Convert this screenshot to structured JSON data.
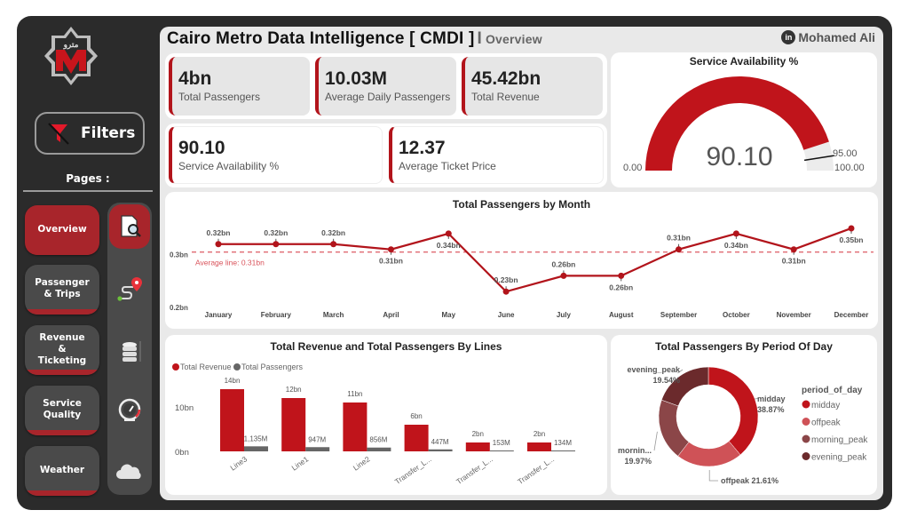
{
  "sidebar": {
    "filters_label": "Filters",
    "pages_label": "Pages :",
    "pages": [
      {
        "label": "Overview",
        "active": true,
        "icon": "report-search-icon"
      },
      {
        "label": "Passenger & Trips",
        "active": false,
        "icon": "route-pin-icon"
      },
      {
        "label": "Revenue & Ticketing",
        "active": false,
        "icon": "database-stack-icon"
      },
      {
        "label": "Service Quality",
        "active": false,
        "icon": "speedometer-icon"
      },
      {
        "label": "Weather",
        "active": false,
        "icon": "cloud-icon"
      }
    ]
  },
  "header": {
    "title": "Cairo Metro Data Intelligence [ CMDI ]",
    "separator": "I",
    "subtitle": "Overview",
    "author": "Mohamed Ali",
    "author_icon": "linkedin-icon"
  },
  "kpis": [
    {
      "value": "4bn",
      "label": "Total Passengers"
    },
    {
      "value": "10.03M",
      "label": "Average Daily Passengers"
    },
    {
      "value": "45.42bn",
      "label": "Total Revenue"
    },
    {
      "value": "90.10",
      "label": "Service Availability %"
    },
    {
      "value": "12.37",
      "label": "Average Ticket Price"
    }
  ],
  "colors": {
    "accent": "#b2141b",
    "sidebar": "#2b2b2b",
    "nav_active": "#a8252b",
    "grey_series": "#666666"
  },
  "chart_data": [
    {
      "type": "gauge",
      "title": "Service Availability %",
      "value": 90.1,
      "value_label": "90.10",
      "min": 0,
      "min_label": "0.00",
      "max": 100,
      "max_label": "100.00",
      "target": 95,
      "target_label": "95.00"
    },
    {
      "type": "line",
      "title": "Total Passengers by Month",
      "categories": [
        "January",
        "February",
        "March",
        "April",
        "May",
        "June",
        "July",
        "August",
        "September",
        "October",
        "November",
        "December"
      ],
      "values": [
        0.32,
        0.32,
        0.32,
        0.31,
        0.34,
        0.23,
        0.26,
        0.26,
        0.31,
        0.34,
        0.31,
        0.35
      ],
      "data_labels": [
        "0.32bn",
        "0.32bn",
        "0.32bn",
        "0.31bn",
        "0.34bn",
        "0.23bn",
        "0.26bn",
        "0.26bn",
        "0.31bn",
        "0.34bn",
        "0.31bn",
        "0.35bn"
      ],
      "yticks": [
        0.2,
        0.3
      ],
      "ytick_labels": [
        "0.2bn",
        "0.3bn"
      ],
      "ylim": [
        0.2,
        0.355
      ],
      "average": 0.305,
      "average_label": "Average line: 0.31bn"
    },
    {
      "type": "bar",
      "title": "Total Revenue and Total Passengers By Lines",
      "categories": [
        "Line3",
        "Line1",
        "Line2",
        "Transfer_L...",
        "Transfer_L...",
        "Transfer_L..."
      ],
      "series": [
        {
          "name": "Total Revenue",
          "values": [
            14,
            12,
            11,
            6,
            2,
            2
          ],
          "labels": [
            "14bn",
            "12bn",
            "11bn",
            "6bn",
            "2bn",
            "2bn"
          ],
          "unit": "bn"
        },
        {
          "name": "Total Passengers",
          "values": [
            1.135,
            0.947,
            0.856,
            0.447,
            0.153,
            0.134
          ],
          "labels": [
            "1,135M",
            "947M",
            "856M",
            "447M",
            "153M",
            "134M"
          ],
          "unit": "bn"
        }
      ],
      "yticks": [
        0,
        10
      ],
      "ytick_labels": [
        "0bn",
        "10bn"
      ],
      "ylim": [
        0,
        15
      ],
      "legend": "top-left"
    },
    {
      "type": "pie",
      "title": "Total Passengers By Period Of Day",
      "legend_title": "period_of_day",
      "legend": "right",
      "slices": [
        {
          "name": "midday",
          "label": "midday",
          "value": 38.87,
          "pct_label": "38.87%",
          "color": "#c0141b"
        },
        {
          "name": "offpeak",
          "label": "offpeak",
          "value": 21.61,
          "pct_label": "21.61%",
          "color": "#cf5257"
        },
        {
          "name": "morning_peak",
          "label": "mornin...",
          "value": 19.97,
          "pct_label": "19.97%",
          "color": "#8b4648"
        },
        {
          "name": "evening_peak",
          "label": "evening_peak",
          "value": 19.54,
          "pct_label": "19.54%",
          "color": "#6b2a2c"
        }
      ]
    }
  ]
}
